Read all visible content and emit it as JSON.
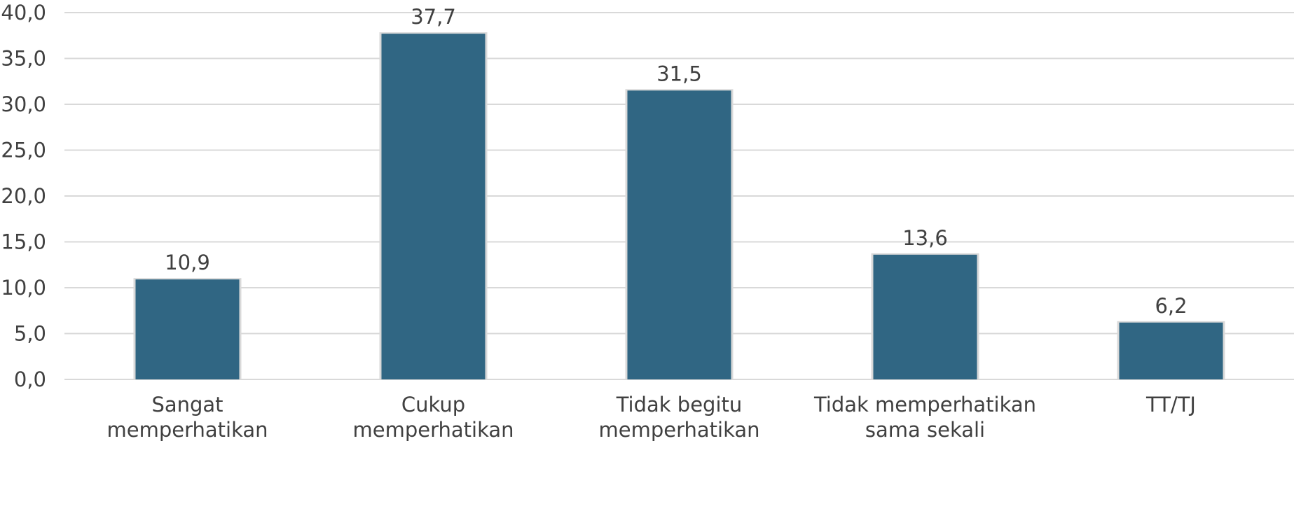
{
  "chart_data": {
    "type": "bar",
    "categories": [
      [
        "Sangat",
        "memperhatikan"
      ],
      [
        "Cukup",
        "memperhatikan"
      ],
      [
        "Tidak begitu",
        "memperhatikan"
      ],
      [
        "Tidak memperhatikan",
        "sama sekali"
      ],
      [
        "TT/TJ"
      ]
    ],
    "values": [
      10.9,
      37.7,
      31.5,
      13.6,
      6.2
    ],
    "value_labels": [
      "10,9",
      "37,7",
      "31,5",
      "13,6",
      "6,2"
    ],
    "ylim": [
      0,
      40
    ],
    "yticks": [
      0,
      5,
      10,
      15,
      20,
      25,
      30,
      35,
      40
    ],
    "ytick_labels": [
      "0,0",
      "5,0",
      "10,0",
      "15,0",
      "20,0",
      "25,0",
      "30,0",
      "35,0",
      "40,0"
    ],
    "title": "",
    "xlabel": "",
    "ylabel": "",
    "grid": true,
    "legend": "none",
    "colors": {
      "bar": "#306683",
      "bar_shadow": "#d9d9d9",
      "grid": "#d9d9d9",
      "text": "#404040"
    }
  }
}
